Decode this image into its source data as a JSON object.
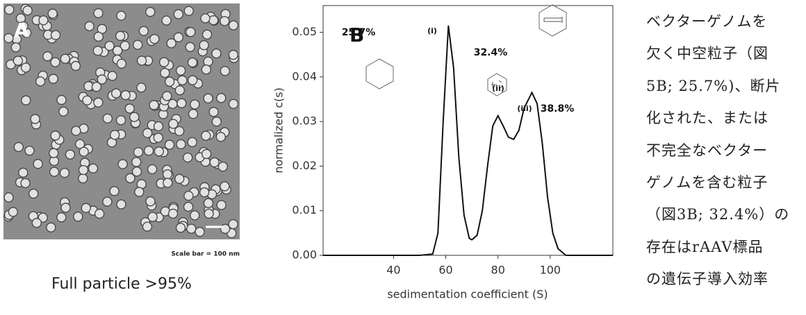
{
  "panel_a": {
    "label": "A",
    "scale_bar_text": "Scale bar = 100 nm",
    "caption": "Full particle >95%"
  },
  "chart_data": {
    "type": "line",
    "panel_label": "B",
    "x_label": "sedimentation coefficient (S)",
    "y_label": "normalized c(s)",
    "x": [
      13,
      50,
      55,
      57,
      59,
      61,
      63,
      65,
      67,
      69,
      70,
      72,
      74,
      76,
      78,
      80,
      82,
      84,
      86,
      88,
      90,
      93,
      95,
      97,
      99,
      101,
      103,
      106,
      124
    ],
    "values": [
      0,
      0,
      0.0003,
      0.005,
      0.03,
      0.0515,
      0.042,
      0.022,
      0.009,
      0.0038,
      0.0035,
      0.0045,
      0.01,
      0.02,
      0.029,
      0.0313,
      0.029,
      0.0265,
      0.026,
      0.028,
      0.033,
      0.0365,
      0.034,
      0.025,
      0.013,
      0.005,
      0.0015,
      0,
      0
    ],
    "color": "#111111",
    "xlim": [
      13,
      124
    ],
    "ylim": [
      0,
      0.056
    ],
    "xticks": [
      40,
      60,
      80,
      100
    ],
    "yticks": [
      {
        "value": 0,
        "label": "0.00"
      },
      0.01,
      0.02,
      0.03,
      0.04,
      0.05
    ],
    "annotations": [
      "25.7%",
      "(i)",
      "32.4%",
      "(ii)",
      "(iii)",
      "38.8%"
    ]
  },
  "text": {
    "lines": [
      "ベクターゲノムを",
      "欠く中空粒子（図",
      "5B; 25.7%)、断片",
      "化された、または",
      "不完全なベクター",
      "ゲノムを含む粒子",
      "（図3B; 32.4%）の",
      "存在はrAAV標品",
      "の遺伝子導入効率"
    ]
  }
}
